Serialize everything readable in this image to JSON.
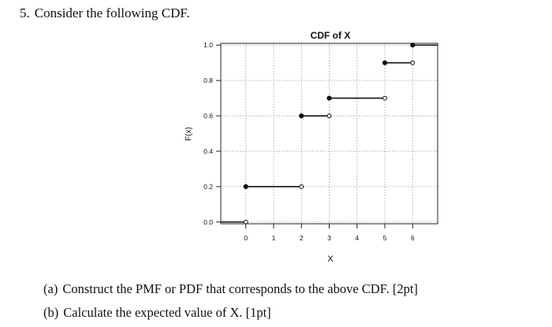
{
  "question": {
    "number": "5.",
    "text": "Consider the following CDF."
  },
  "parts": [
    {
      "label": "(a)",
      "text": "Construct the PMF or PDF that corresponds to the above CDF. [2pt]"
    },
    {
      "label": "(b)",
      "text": "Calculate the expected value of X. [1pt]"
    }
  ],
  "chart_data": {
    "type": "step",
    "title": "CDF of X",
    "xlabel": "X",
    "ylabel": "F(x)",
    "xlim": [
      -0.9,
      6.9
    ],
    "ylim": [
      -0.01,
      1.01
    ],
    "xticks": [
      0,
      1,
      2,
      3,
      4,
      5,
      6
    ],
    "yticks": [
      0.0,
      0.2,
      0.4,
      0.6,
      0.8,
      1.0
    ],
    "xtick_labels": [
      "0",
      "1",
      "2",
      "3",
      "4",
      "5",
      "6"
    ],
    "ytick_labels": [
      "0.0",
      "0.2",
      "0.4",
      "0.6",
      "0.8",
      "1.0"
    ],
    "grid": true,
    "segments": [
      {
        "x_start": -0.9,
        "x_end": 0,
        "y": 0.0,
        "left_closed": false,
        "right_open": true
      },
      {
        "x_start": 0,
        "x_end": 2,
        "y": 0.2,
        "left_closed": true,
        "right_open": true
      },
      {
        "x_start": 2,
        "x_end": 3,
        "y": 0.6,
        "left_closed": true,
        "right_open": true
      },
      {
        "x_start": 3,
        "x_end": 5,
        "y": 0.7,
        "left_closed": true,
        "right_open": true
      },
      {
        "x_start": 5,
        "x_end": 6,
        "y": 0.9,
        "left_closed": true,
        "right_open": true
      },
      {
        "x_start": 6,
        "x_end": 6.9,
        "y": 1.0,
        "left_closed": true,
        "right_open": false
      }
    ]
  }
}
